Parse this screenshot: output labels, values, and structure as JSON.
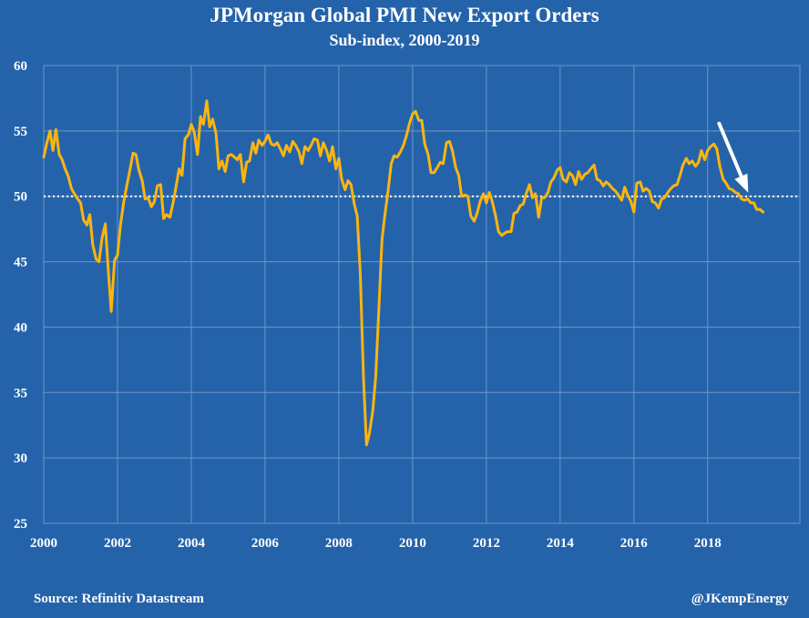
{
  "colors": {
    "background": "#2463aa",
    "grid": "#6c95c8",
    "series": "#fbb50f",
    "reference": "#ffffff",
    "text": "#ffffff"
  },
  "header": {
    "title": "JPMorgan Global PMI New Export Orders",
    "subtitle": "Sub-index, 2000-2019"
  },
  "footer": {
    "source": "Source: Refinitiv Datastream",
    "handle": "@JKempEnergy"
  },
  "chart_data": {
    "type": "line",
    "title": "JPMorgan Global PMI New Export Orders",
    "subtitle": "Sub-index, 2000-2019",
    "xlabel": "",
    "ylabel": "",
    "xlim": [
      2000,
      2020.5
    ],
    "ylim": [
      25,
      60
    ],
    "x_ticks": [
      2000,
      2002,
      2004,
      2006,
      2008,
      2010,
      2012,
      2014,
      2016,
      2018
    ],
    "x_tick_labels": [
      "2000",
      "2002",
      "2004",
      "2006",
      "2008",
      "2010",
      "2012",
      "2014",
      "2016",
      "2018"
    ],
    "y_ticks": [
      25,
      30,
      35,
      40,
      45,
      50,
      55,
      60
    ],
    "y_tick_labels": [
      "25",
      "30",
      "35",
      "40",
      "45",
      "50",
      "55",
      "60"
    ],
    "grid": true,
    "reference_line": {
      "y": 50,
      "style": "dotted"
    },
    "annotation": {
      "type": "arrow",
      "points_to": [
        2019.2,
        50.0
      ]
    },
    "series": [
      {
        "name": "New Export Orders sub-index",
        "x": [
          2000.0,
          2000.08,
          2000.17,
          2000.25,
          2000.33,
          2000.42,
          2000.5,
          2000.58,
          2000.67,
          2000.75,
          2000.83,
          2000.92,
          2001.0,
          2001.08,
          2001.17,
          2001.25,
          2001.33,
          2001.42,
          2001.5,
          2001.58,
          2001.67,
          2001.75,
          2001.83,
          2001.92,
          2002.0,
          2002.08,
          2002.17,
          2002.25,
          2002.33,
          2002.42,
          2002.5,
          2002.58,
          2002.67,
          2002.75,
          2002.83,
          2002.92,
          2003.0,
          2003.08,
          2003.17,
          2003.25,
          2003.33,
          2003.42,
          2003.5,
          2003.58,
          2003.67,
          2003.75,
          2003.83,
          2003.92,
          2004.0,
          2004.08,
          2004.17,
          2004.25,
          2004.33,
          2004.42,
          2004.5,
          2004.58,
          2004.67,
          2004.75,
          2004.83,
          2004.92,
          2005.0,
          2005.08,
          2005.17,
          2005.25,
          2005.33,
          2005.42,
          2005.5,
          2005.58,
          2005.67,
          2005.75,
          2005.83,
          2005.92,
          2006.0,
          2006.08,
          2006.17,
          2006.25,
          2006.33,
          2006.42,
          2006.5,
          2006.58,
          2006.67,
          2006.75,
          2006.83,
          2006.92,
          2007.0,
          2007.08,
          2007.17,
          2007.25,
          2007.33,
          2007.42,
          2007.5,
          2007.58,
          2007.67,
          2007.75,
          2007.83,
          2007.92,
          2008.0,
          2008.08,
          2008.17,
          2008.25,
          2008.33,
          2008.42,
          2008.5,
          2008.58,
          2008.67,
          2008.75,
          2008.83,
          2008.92,
          2009.0,
          2009.08,
          2009.17,
          2009.25,
          2009.33,
          2009.42,
          2009.5,
          2009.58,
          2009.67,
          2009.75,
          2009.83,
          2009.92,
          2010.0,
          2010.08,
          2010.17,
          2010.25,
          2010.33,
          2010.42,
          2010.5,
          2010.58,
          2010.67,
          2010.75,
          2010.83,
          2010.92,
          2011.0,
          2011.08,
          2011.17,
          2011.25,
          2011.33,
          2011.42,
          2011.5,
          2011.58,
          2011.67,
          2011.75,
          2011.83,
          2011.92,
          2012.0,
          2012.08,
          2012.17,
          2012.25,
          2012.33,
          2012.42,
          2012.5,
          2012.58,
          2012.67,
          2012.75,
          2012.83,
          2012.92,
          2013.0,
          2013.08,
          2013.17,
          2013.25,
          2013.33,
          2013.42,
          2013.5,
          2013.58,
          2013.67,
          2013.75,
          2013.83,
          2013.92,
          2014.0,
          2014.08,
          2014.17,
          2014.25,
          2014.33,
          2014.42,
          2014.5,
          2014.58,
          2014.67,
          2014.75,
          2014.83,
          2014.92,
          2015.0,
          2015.08,
          2015.17,
          2015.25,
          2015.33,
          2015.42,
          2015.5,
          2015.58,
          2015.67,
          2015.75,
          2015.83,
          2015.92,
          2016.0,
          2016.08,
          2016.17,
          2016.25,
          2016.33,
          2016.42,
          2016.5,
          2016.58,
          2016.67,
          2016.75,
          2016.83,
          2016.92,
          2017.0,
          2017.08,
          2017.17,
          2017.25,
          2017.33,
          2017.42,
          2017.5,
          2017.58,
          2017.67,
          2017.75,
          2017.83,
          2017.92,
          2018.0,
          2018.08,
          2018.17,
          2018.25,
          2018.33,
          2018.42,
          2018.5,
          2018.58,
          2018.67,
          2018.75,
          2018.83,
          2018.92,
          2019.0,
          2019.08,
          2019.17,
          2019.25,
          2019.33,
          2019.42,
          2019.5
        ],
        "values": [
          53.0,
          54.0,
          55.0,
          53.5,
          55.1,
          53.2,
          52.8,
          52.1,
          51.5,
          50.6,
          50.2,
          49.8,
          49.5,
          48.2,
          47.8,
          48.6,
          46.3,
          45.2,
          45.0,
          46.8,
          47.9,
          44.3,
          41.2,
          45.1,
          45.5,
          47.8,
          49.6,
          50.8,
          51.9,
          53.3,
          53.2,
          52.0,
          51.2,
          49.8,
          49.9,
          49.2,
          49.6,
          50.8,
          50.9,
          48.3,
          48.6,
          48.4,
          49.4,
          50.6,
          52.1,
          51.6,
          54.4,
          54.7,
          55.5,
          54.9,
          53.2,
          56.1,
          55.5,
          57.3,
          55.3,
          55.9,
          54.8,
          52.1,
          52.7,
          51.9,
          53.1,
          53.2,
          53.0,
          52.8,
          53.2,
          51.1,
          52.6,
          52.7,
          54.1,
          53.3,
          54.3,
          53.9,
          54.2,
          54.7,
          54.0,
          53.9,
          54.1,
          53.6,
          53.1,
          53.9,
          53.4,
          54.2,
          53.9,
          53.4,
          52.5,
          53.8,
          53.5,
          53.9,
          54.4,
          54.3,
          53.1,
          54.1,
          53.5,
          52.7,
          53.8,
          52.1,
          52.9,
          51.3,
          50.5,
          51.2,
          50.9,
          49.4,
          48.5,
          44.2,
          36.1,
          31.0,
          31.9,
          33.6,
          36.2,
          41.0,
          46.7,
          48.6,
          50.3,
          52.5,
          53.1,
          53.0,
          53.4,
          53.9,
          54.6,
          55.6,
          56.3,
          56.5,
          55.8,
          55.8,
          54.0,
          53.2,
          51.8,
          51.8,
          52.2,
          52.6,
          52.5,
          54.1,
          54.2,
          53.5,
          52.2,
          51.6,
          50.0,
          50.1,
          50.0,
          48.5,
          48.1,
          48.7,
          49.6,
          50.2,
          49.5,
          50.3,
          49.5,
          48.5,
          47.3,
          47.0,
          47.2,
          47.3,
          47.3,
          48.7,
          48.8,
          49.3,
          49.4,
          50.2,
          50.9,
          49.9,
          50.2,
          48.4,
          49.9,
          49.9,
          50.3,
          51.1,
          51.4,
          52.0,
          52.2,
          51.3,
          51.1,
          51.8,
          51.6,
          50.9,
          51.9,
          51.3,
          51.7,
          51.8,
          52.1,
          52.4,
          51.3,
          51.2,
          50.8,
          51.1,
          50.9,
          50.6,
          50.4,
          50.1,
          49.7,
          50.7,
          50.1,
          49.6,
          48.8,
          51.0,
          51.1,
          50.4,
          50.6,
          50.4,
          49.6,
          49.5,
          49.1,
          49.8,
          49.9,
          50.3,
          50.6,
          50.8,
          50.9,
          51.6,
          52.4,
          52.9,
          52.5,
          52.7,
          52.3,
          52.6,
          53.5,
          52.8,
          53.5,
          53.8,
          54.0,
          53.6,
          52.3,
          51.3,
          51.0,
          50.6,
          50.5,
          50.3,
          50.2,
          49.8,
          49.7,
          49.8,
          49.5,
          49.5,
          49.0,
          49.0,
          48.8
        ]
      }
    ]
  }
}
